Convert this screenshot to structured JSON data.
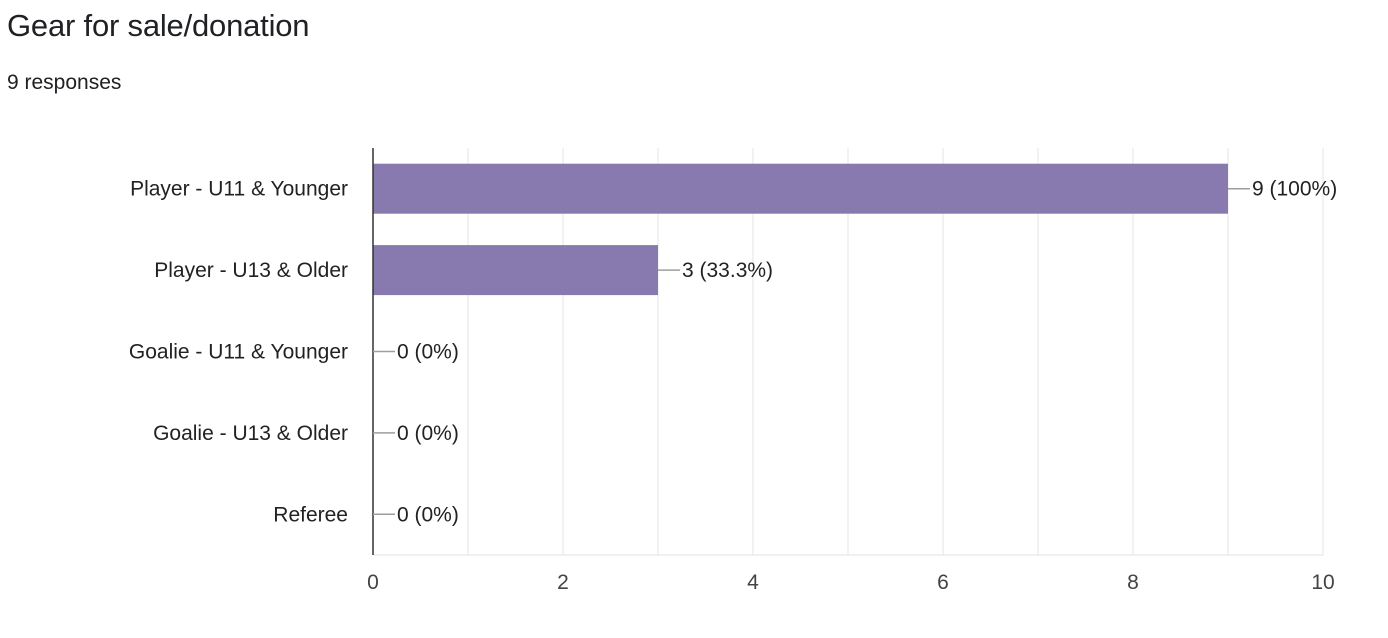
{
  "header": {
    "title": "Gear for sale/donation",
    "responses": "9 responses"
  },
  "chart_data": {
    "type": "bar",
    "orientation": "horizontal",
    "categories": [
      "Player - U11 & Younger",
      "Player - U13 & Older",
      "Goalie - U11 & Younger",
      "Goalie - U13 & Older",
      "Referee"
    ],
    "values": [
      9,
      3,
      0,
      0,
      0
    ],
    "value_labels": [
      "9 (100%)",
      "3 (33.3%)",
      "0 (0%)",
      "0 (0%)",
      "0 (0%)"
    ],
    "xlim": [
      0,
      10
    ],
    "x_ticks": [
      0,
      2,
      4,
      6,
      8,
      10
    ],
    "x_tick_labels": [
      "0",
      "2",
      "4",
      "6",
      "8",
      "10"
    ],
    "grid": true,
    "bar_color": "#8879ae"
  }
}
